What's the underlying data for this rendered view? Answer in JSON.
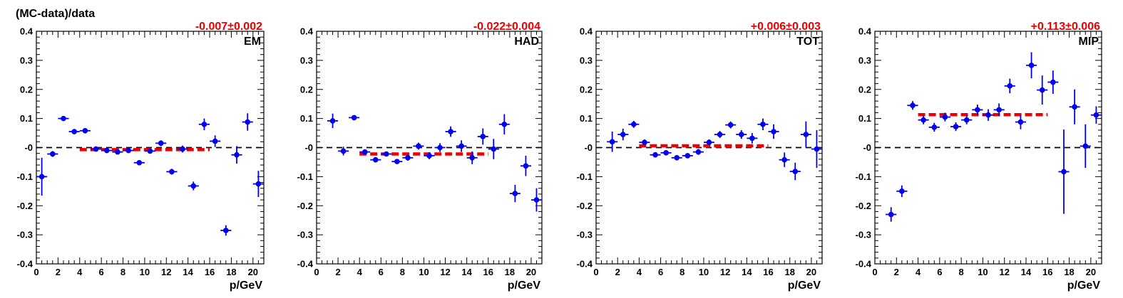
{
  "y_axis_title": "(MC-data)/data",
  "colors": {
    "points": "#0000ee",
    "fit": "#ee0000",
    "zero_line": "#000000",
    "fit_text": "#ee0000"
  },
  "chart_data": [
    {
      "type": "scatter",
      "panel_label": "EM",
      "fit_label": "-0.007±0.002",
      "fit": {
        "value": -0.007,
        "x_range": [
          4,
          16
        ]
      },
      "xlabel": "p/GeV",
      "ylabel": "(MC-data)/data",
      "xlim": [
        0,
        21
      ],
      "ylim": [
        -0.4,
        0.4
      ],
      "x_ticks": [
        0,
        2,
        4,
        6,
        8,
        10,
        12,
        14,
        16,
        18,
        20
      ],
      "y_ticks": [
        -0.4,
        -0.3,
        -0.2,
        -0.1,
        0,
        0.1,
        0.2,
        0.3,
        0.4
      ],
      "y_tick_labels": [
        "-0.4",
        "-0.3",
        "-0.2",
        "-0.1",
        "-0",
        "0.1",
        "0.2",
        "0.3",
        "0.4"
      ],
      "reference_line": 0,
      "points": [
        {
          "x": 0.5,
          "y": -0.1,
          "err": 0.065
        },
        {
          "x": 1.5,
          "y": -0.022,
          "err": 0.01
        },
        {
          "x": 2.5,
          "y": 0.1,
          "err": 0.005
        },
        {
          "x": 3.5,
          "y": 0.055,
          "err": 0.005
        },
        {
          "x": 4.5,
          "y": 0.058,
          "err": 0.005
        },
        {
          "x": 5.5,
          "y": -0.005,
          "err": 0.005
        },
        {
          "x": 6.5,
          "y": -0.01,
          "err": 0.005
        },
        {
          "x": 7.5,
          "y": -0.015,
          "err": 0.005
        },
        {
          "x": 8.5,
          "y": -0.01,
          "err": 0.005
        },
        {
          "x": 9.5,
          "y": -0.052,
          "err": 0.006
        },
        {
          "x": 10.5,
          "y": -0.012,
          "err": 0.008
        },
        {
          "x": 11.5,
          "y": 0.015,
          "err": 0.01
        },
        {
          "x": 12.5,
          "y": -0.083,
          "err": 0.01
        },
        {
          "x": 13.5,
          "y": -0.005,
          "err": 0.012
        },
        {
          "x": 14.5,
          "y": -0.132,
          "err": 0.015
        },
        {
          "x": 15.5,
          "y": 0.08,
          "err": 0.02
        },
        {
          "x": 16.5,
          "y": 0.022,
          "err": 0.02
        },
        {
          "x": 17.5,
          "y": -0.285,
          "err": 0.018
        },
        {
          "x": 18.5,
          "y": -0.025,
          "err": 0.03
        },
        {
          "x": 19.5,
          "y": 0.088,
          "err": 0.03
        },
        {
          "x": 20.5,
          "y": -0.125,
          "err": 0.045
        }
      ]
    },
    {
      "type": "scatter",
      "panel_label": "HAD",
      "fit_label": "-0.022±0.004",
      "fit": {
        "value": -0.022,
        "x_range": [
          4,
          16
        ]
      },
      "xlabel": "p/GeV",
      "ylabel": "",
      "xlim": [
        0,
        21
      ],
      "ylim": [
        -0.4,
        0.4
      ],
      "x_ticks": [
        0,
        2,
        4,
        6,
        8,
        10,
        12,
        14,
        16,
        18,
        20
      ],
      "y_ticks": [
        -0.4,
        -0.3,
        -0.2,
        -0.1,
        0,
        0.1,
        0.2,
        0.3,
        0.4
      ],
      "y_tick_labels": [
        "-0.4",
        "-0.3",
        "-0.2",
        "-0.1",
        "-0",
        "0.1",
        "0.2",
        "0.3",
        "0.4"
      ],
      "reference_line": 0,
      "points": [
        {
          "x": 1.5,
          "y": 0.092,
          "err": 0.025
        },
        {
          "x": 2.5,
          "y": -0.012,
          "err": 0.015
        },
        {
          "x": 3.5,
          "y": 0.103,
          "err": 0.008
        },
        {
          "x": 4.5,
          "y": -0.015,
          "err": 0.008
        },
        {
          "x": 5.5,
          "y": -0.042,
          "err": 0.008
        },
        {
          "x": 6.5,
          "y": -0.022,
          "err": 0.008
        },
        {
          "x": 7.5,
          "y": -0.048,
          "err": 0.008
        },
        {
          "x": 8.5,
          "y": -0.035,
          "err": 0.01
        },
        {
          "x": 9.5,
          "y": 0.005,
          "err": 0.012
        },
        {
          "x": 10.5,
          "y": -0.028,
          "err": 0.012
        },
        {
          "x": 11.5,
          "y": 0.0,
          "err": 0.015
        },
        {
          "x": 12.5,
          "y": 0.055,
          "err": 0.018
        },
        {
          "x": 13.5,
          "y": 0.005,
          "err": 0.02
        },
        {
          "x": 14.5,
          "y": -0.035,
          "err": 0.022
        },
        {
          "x": 15.5,
          "y": 0.038,
          "err": 0.028
        },
        {
          "x": 16.5,
          "y": -0.005,
          "err": 0.035
        },
        {
          "x": 17.5,
          "y": 0.08,
          "err": 0.035
        },
        {
          "x": 18.5,
          "y": -0.158,
          "err": 0.03
        },
        {
          "x": 19.5,
          "y": -0.063,
          "err": 0.035
        },
        {
          "x": 20.5,
          "y": -0.18,
          "err": 0.04
        }
      ]
    },
    {
      "type": "scatter",
      "panel_label": "TOT",
      "fit_label": "+0.006±0.003",
      "fit": {
        "value": 0.006,
        "x_range": [
          4,
          16
        ]
      },
      "xlabel": "p/GeV",
      "ylabel": "",
      "xlim": [
        0,
        21
      ],
      "ylim": [
        -0.4,
        0.4
      ],
      "x_ticks": [
        0,
        2,
        4,
        6,
        8,
        10,
        12,
        14,
        16,
        18,
        20
      ],
      "y_ticks": [
        -0.4,
        -0.3,
        -0.2,
        -0.1,
        0,
        0.1,
        0.2,
        0.3,
        0.4
      ],
      "y_tick_labels": [
        "-0.4",
        "-0.3",
        "-0.2",
        "-0.1",
        "-0",
        "0.1",
        "0.2",
        "0.3",
        "0.4"
      ],
      "reference_line": 0,
      "points": [
        {
          "x": 1.5,
          "y": 0.02,
          "err": 0.035
        },
        {
          "x": 2.5,
          "y": 0.045,
          "err": 0.02
        },
        {
          "x": 3.5,
          "y": 0.08,
          "err": 0.012
        },
        {
          "x": 4.5,
          "y": 0.018,
          "err": 0.01
        },
        {
          "x": 5.5,
          "y": -0.025,
          "err": 0.008
        },
        {
          "x": 6.5,
          "y": -0.018,
          "err": 0.008
        },
        {
          "x": 7.5,
          "y": -0.035,
          "err": 0.008
        },
        {
          "x": 8.5,
          "y": -0.028,
          "err": 0.008
        },
        {
          "x": 9.5,
          "y": -0.015,
          "err": 0.01
        },
        {
          "x": 10.5,
          "y": 0.018,
          "err": 0.01
        },
        {
          "x": 11.5,
          "y": 0.045,
          "err": 0.012
        },
        {
          "x": 12.5,
          "y": 0.078,
          "err": 0.012
        },
        {
          "x": 13.5,
          "y": 0.045,
          "err": 0.015
        },
        {
          "x": 14.5,
          "y": 0.032,
          "err": 0.018
        },
        {
          "x": 15.5,
          "y": 0.08,
          "err": 0.02
        },
        {
          "x": 16.5,
          "y": 0.055,
          "err": 0.025
        },
        {
          "x": 17.5,
          "y": -0.042,
          "err": 0.025
        },
        {
          "x": 18.5,
          "y": -0.082,
          "err": 0.03
        },
        {
          "x": 19.5,
          "y": 0.045,
          "err": 0.045
        },
        {
          "x": 20.5,
          "y": -0.005,
          "err": 0.065
        }
      ]
    },
    {
      "type": "scatter",
      "panel_label": "MIP",
      "fit_label": "+0.113±0.006",
      "fit": {
        "value": 0.113,
        "x_range": [
          4,
          16
        ]
      },
      "xlabel": "p/GeV",
      "ylabel": "",
      "xlim": [
        0,
        21
      ],
      "ylim": [
        -0.4,
        0.4
      ],
      "x_ticks": [
        0,
        2,
        4,
        6,
        8,
        10,
        12,
        14,
        16,
        18,
        20
      ],
      "y_ticks": [
        -0.4,
        -0.3,
        -0.2,
        -0.1,
        0,
        0.1,
        0.2,
        0.3,
        0.4
      ],
      "y_tick_labels": [
        "-0.4",
        "-0.3",
        "-0.2",
        "-0.1",
        "-0",
        "0.1",
        "0.2",
        "0.3",
        "0.4"
      ],
      "reference_line": 0,
      "points": [
        {
          "x": 1.5,
          "y": -0.23,
          "err": 0.025
        },
        {
          "x": 2.5,
          "y": -0.15,
          "err": 0.02
        },
        {
          "x": 3.5,
          "y": 0.145,
          "err": 0.015
        },
        {
          "x": 4.5,
          "y": 0.095,
          "err": 0.015
        },
        {
          "x": 5.5,
          "y": 0.07,
          "err": 0.015
        },
        {
          "x": 6.5,
          "y": 0.105,
          "err": 0.015
        },
        {
          "x": 7.5,
          "y": 0.072,
          "err": 0.015
        },
        {
          "x": 8.5,
          "y": 0.095,
          "err": 0.015
        },
        {
          "x": 9.5,
          "y": 0.13,
          "err": 0.018
        },
        {
          "x": 10.5,
          "y": 0.112,
          "err": 0.02
        },
        {
          "x": 11.5,
          "y": 0.13,
          "err": 0.022
        },
        {
          "x": 12.5,
          "y": 0.212,
          "err": 0.025
        },
        {
          "x": 13.5,
          "y": 0.088,
          "err": 0.025
        },
        {
          "x": 14.5,
          "y": 0.283,
          "err": 0.045
        },
        {
          "x": 15.5,
          "y": 0.198,
          "err": 0.05
        },
        {
          "x": 16.5,
          "y": 0.225,
          "err": 0.04
        },
        {
          "x": 17.5,
          "y": -0.083,
          "err": 0.145
        },
        {
          "x": 18.5,
          "y": 0.14,
          "err": 0.06
        },
        {
          "x": 19.5,
          "y": 0.005,
          "err": 0.075
        },
        {
          "x": 20.5,
          "y": 0.112,
          "err": 0.03
        }
      ]
    }
  ]
}
